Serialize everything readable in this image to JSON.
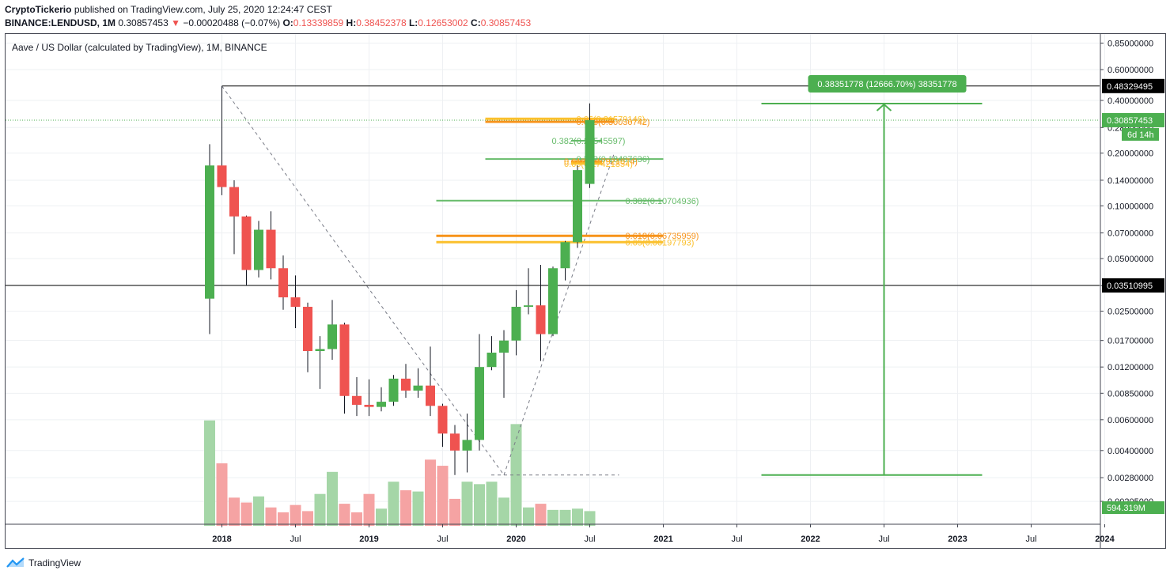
{
  "header": {
    "publisher": "CryptoTickerio",
    "published_text": "published on TradingView.com, July 25, 2020 12:24:47 CEST",
    "symbol": "BINANCE:LENDUSD, 1M",
    "last": "0.30857453",
    "arrow": "▼",
    "change": "−0.00020488 (−0.07%)",
    "o_label": "O:",
    "o_value": "0.13339859",
    "h_label": "H:",
    "h_value": "0.38452378",
    "l_label": "L:",
    "l_value": "0.12653002",
    "c_label": "C:",
    "c_value": "0.30857453"
  },
  "chart_title": "Aave / US Dollar (calculated by TradingView), 1M, BINANCE",
  "footer": {
    "brand": "TradingView"
  },
  "colors": {
    "up": "#4caf50",
    "down": "#ef5350",
    "vol_up": "#a5d6a7",
    "vol_down": "#f5a3a3",
    "grid": "#eef0f3",
    "fib_green": "#66bb6a",
    "fib_orange": "#f7931a",
    "fib_yellow": "#fbc02d"
  },
  "chart_data": {
    "type": "candlestick",
    "y_scale": "log",
    "y_ticks": [
      "0.85000000",
      "0.60000000",
      "0.40000000",
      "0.28000000",
      "0.20000000",
      "0.14000000",
      "0.10000000",
      "0.07000000",
      "0.05000000",
      "0.03500000",
      "0.02500000",
      "0.01700000",
      "0.01200000",
      "0.00850000",
      "0.00600000",
      "0.00400000",
      "0.00280000",
      "0.00205000"
    ],
    "x_ticks": [
      {
        "label": "2018",
        "date": "2018-01",
        "bold": true
      },
      {
        "label": "Jul",
        "date": "2018-07",
        "bold": false
      },
      {
        "label": "2019",
        "date": "2019-01",
        "bold": true
      },
      {
        "label": "Jul",
        "date": "2019-07",
        "bold": false
      },
      {
        "label": "2020",
        "date": "2020-01",
        "bold": true
      },
      {
        "label": "Jul",
        "date": "2020-07",
        "bold": false
      },
      {
        "label": "2021",
        "date": "2021-01",
        "bold": true
      },
      {
        "label": "Jul",
        "date": "2021-07",
        "bold": false
      },
      {
        "label": "2022",
        "date": "2022-01",
        "bold": true
      },
      {
        "label": "Jul",
        "date": "2022-07",
        "bold": false
      },
      {
        "label": "2023",
        "date": "2023-01",
        "bold": true
      },
      {
        "label": "Jul",
        "date": "2023-07",
        "bold": false
      },
      {
        "label": "2024",
        "date": "2024-01",
        "bold": true
      }
    ],
    "candles": [
      {
        "date": "2017-12",
        "o": 0.0295,
        "h": 0.225,
        "l": 0.0185,
        "c": 0.17,
        "v": 0.86
      },
      {
        "date": "2018-01",
        "o": 0.17,
        "h": 0.4833,
        "l": 0.115,
        "c": 0.128,
        "v": 0.51
      },
      {
        "date": "2018-02",
        "o": 0.128,
        "h": 0.14,
        "l": 0.053,
        "c": 0.087,
        "v": 0.23
      },
      {
        "date": "2018-03",
        "o": 0.087,
        "h": 0.088,
        "l": 0.035,
        "c": 0.043,
        "v": 0.19
      },
      {
        "date": "2018-04",
        "o": 0.043,
        "h": 0.082,
        "l": 0.039,
        "c": 0.073,
        "v": 0.24
      },
      {
        "date": "2018-05",
        "o": 0.073,
        "h": 0.093,
        "l": 0.038,
        "c": 0.044,
        "v": 0.15
      },
      {
        "date": "2018-06",
        "o": 0.044,
        "h": 0.052,
        "l": 0.0255,
        "c": 0.03,
        "v": 0.11
      },
      {
        "date": "2018-07",
        "o": 0.03,
        "h": 0.04,
        "l": 0.02,
        "c": 0.0265,
        "v": 0.17
      },
      {
        "date": "2018-08",
        "o": 0.0265,
        "h": 0.028,
        "l": 0.0112,
        "c": 0.0148,
        "v": 0.12
      },
      {
        "date": "2018-09",
        "o": 0.0148,
        "h": 0.018,
        "l": 0.009,
        "c": 0.0152,
        "v": 0.26
      },
      {
        "date": "2018-10",
        "o": 0.0152,
        "h": 0.029,
        "l": 0.0132,
        "c": 0.021,
        "v": 0.44
      },
      {
        "date": "2018-11",
        "o": 0.021,
        "h": 0.0215,
        "l": 0.0065,
        "c": 0.0082,
        "v": 0.18
      },
      {
        "date": "2018-12",
        "o": 0.0082,
        "h": 0.0105,
        "l": 0.0063,
        "c": 0.0073,
        "v": 0.11
      },
      {
        "date": "2019-01",
        "o": 0.0073,
        "h": 0.0102,
        "l": 0.0063,
        "c": 0.0071,
        "v": 0.26
      },
      {
        "date": "2019-02",
        "o": 0.0071,
        "h": 0.0092,
        "l": 0.0067,
        "c": 0.0076,
        "v": 0.14
      },
      {
        "date": "2019-03",
        "o": 0.0076,
        "h": 0.0108,
        "l": 0.0072,
        "c": 0.0103,
        "v": 0.36
      },
      {
        "date": "2019-04",
        "o": 0.0103,
        "h": 0.0125,
        "l": 0.008,
        "c": 0.0088,
        "v": 0.29
      },
      {
        "date": "2019-05",
        "o": 0.0088,
        "h": 0.0118,
        "l": 0.008,
        "c": 0.0094,
        "v": 0.28
      },
      {
        "date": "2019-06",
        "o": 0.0094,
        "h": 0.0157,
        "l": 0.0063,
        "c": 0.0072,
        "v": 0.54
      },
      {
        "date": "2019-07",
        "o": 0.0072,
        "h": 0.0074,
        "l": 0.0042,
        "c": 0.005,
        "v": 0.49
      },
      {
        "date": "2019-08",
        "o": 0.005,
        "h": 0.0056,
        "l": 0.0029,
        "c": 0.004,
        "v": 0.22
      },
      {
        "date": "2019-09",
        "o": 0.004,
        "h": 0.0065,
        "l": 0.003,
        "c": 0.0046,
        "v": 0.36
      },
      {
        "date": "2019-10",
        "o": 0.0046,
        "h": 0.0185,
        "l": 0.004,
        "c": 0.012,
        "v": 0.34
      },
      {
        "date": "2019-11",
        "o": 0.012,
        "h": 0.018,
        "l": 0.0115,
        "c": 0.0145,
        "v": 0.36
      },
      {
        "date": "2019-12",
        "o": 0.0145,
        "h": 0.0195,
        "l": 0.008,
        "c": 0.017,
        "v": 0.23
      },
      {
        "date": "2020-01",
        "o": 0.017,
        "h": 0.033,
        "l": 0.014,
        "c": 0.0265,
        "v": 0.83
      },
      {
        "date": "2020-02",
        "o": 0.0265,
        "h": 0.044,
        "l": 0.024,
        "c": 0.027,
        "v": 0.15
      },
      {
        "date": "2020-03",
        "o": 0.027,
        "h": 0.046,
        "l": 0.013,
        "c": 0.0185,
        "v": 0.18
      },
      {
        "date": "2020-04",
        "o": 0.0185,
        "h": 0.045,
        "l": 0.018,
        "c": 0.044,
        "v": 0.13
      },
      {
        "date": "2020-05",
        "o": 0.044,
        "h": 0.063,
        "l": 0.0375,
        "c": 0.062,
        "v": 0.13
      },
      {
        "date": "2020-06",
        "o": 0.062,
        "h": 0.17,
        "l": 0.0575,
        "c": 0.16,
        "v": 0.14
      },
      {
        "date": "2020-07",
        "o": 0.1334,
        "h": 0.3845,
        "l": 0.1265,
        "c": 0.3086,
        "v": 0.12
      }
    ],
    "fibs": [
      {
        "label": "0.65(0.31579146)",
        "price": 0.314,
        "color": "fib_yellow",
        "from": "2019-11",
        "to": "2020-09",
        "width": 3,
        "text_at": "2020-09"
      },
      {
        "label": "0.618(0.30030742)",
        "price": 0.302,
        "color": "fib_orange",
        "from": "2019-11",
        "to": "2020-09",
        "width": 3,
        "text_at": "2020-09"
      },
      {
        "label": "0.382(0.23545597)",
        "price": 0.2355,
        "color": "fib_green",
        "from": "2020-06",
        "to": "2020-08",
        "width": 2,
        "text_at": "2020-07"
      },
      {
        "label": "0.382(0.18487636)",
        "price": 0.185,
        "color": "fib_green",
        "from": "2019-11",
        "to": "2021-01",
        "width": 2,
        "text_at": "2020-09"
      },
      {
        "label": "0.618(0.17921074)",
        "price": 0.1792,
        "color": "fib_orange",
        "from": "2020-06",
        "to": "2020-08",
        "width": 3,
        "text_at": "2020-08"
      },
      {
        "label": "0.65(0.17421854)",
        "price": 0.1742,
        "color": "fib_yellow",
        "from": "2020-06",
        "to": "2020-08",
        "width": 3,
        "text_at": "2020-08"
      },
      {
        "label": "0.382(0.10704936)",
        "price": 0.107,
        "color": "fib_green",
        "from": "2019-07",
        "to": "2021-01",
        "width": 2,
        "text_at": "2021-01"
      },
      {
        "label": "0.618(0.06735959)",
        "price": 0.0674,
        "color": "fib_orange",
        "from": "2019-07",
        "to": "2021-01",
        "width": 3,
        "text_at": "2021-01"
      },
      {
        "label": "0.65(0.06197793)",
        "price": 0.062,
        "color": "fib_yellow",
        "from": "2019-07",
        "to": "2021-01",
        "width": 3,
        "text_at": "2021-01"
      }
    ],
    "hlines": [
      {
        "price": 0.48329495,
        "label": "0.48329495",
        "color": "#000000",
        "from": "2018-01"
      },
      {
        "price": 0.03510995,
        "label": "0.03510995",
        "color": "#000000",
        "from": "start"
      }
    ],
    "last_price": {
      "price": 0.30857453,
      "label": "0.30857453",
      "countdown": "6d 14h"
    },
    "volume_label": "594.319M",
    "measure": {
      "text": "0.38351778 (12666.70%) 38351778",
      "from_price": 0.0029,
      "to_price": 0.3835,
      "x_from": "2021-09",
      "x_to": "2023-03",
      "x_arrow": "2022-07"
    },
    "trend_lines": [
      {
        "from": {
          "date": "2018-01",
          "price": 0.4833
        },
        "to": {
          "date": "2019-12",
          "price": 0.0029
        }
      },
      {
        "from": {
          "date": "2019-12",
          "price": 0.0029
        },
        "to": {
          "date": "2020-09",
          "price": 0.2
        }
      }
    ],
    "dashed_floor": {
      "price": 0.0029,
      "from": "2019-12",
      "to": "2020-09"
    }
  }
}
